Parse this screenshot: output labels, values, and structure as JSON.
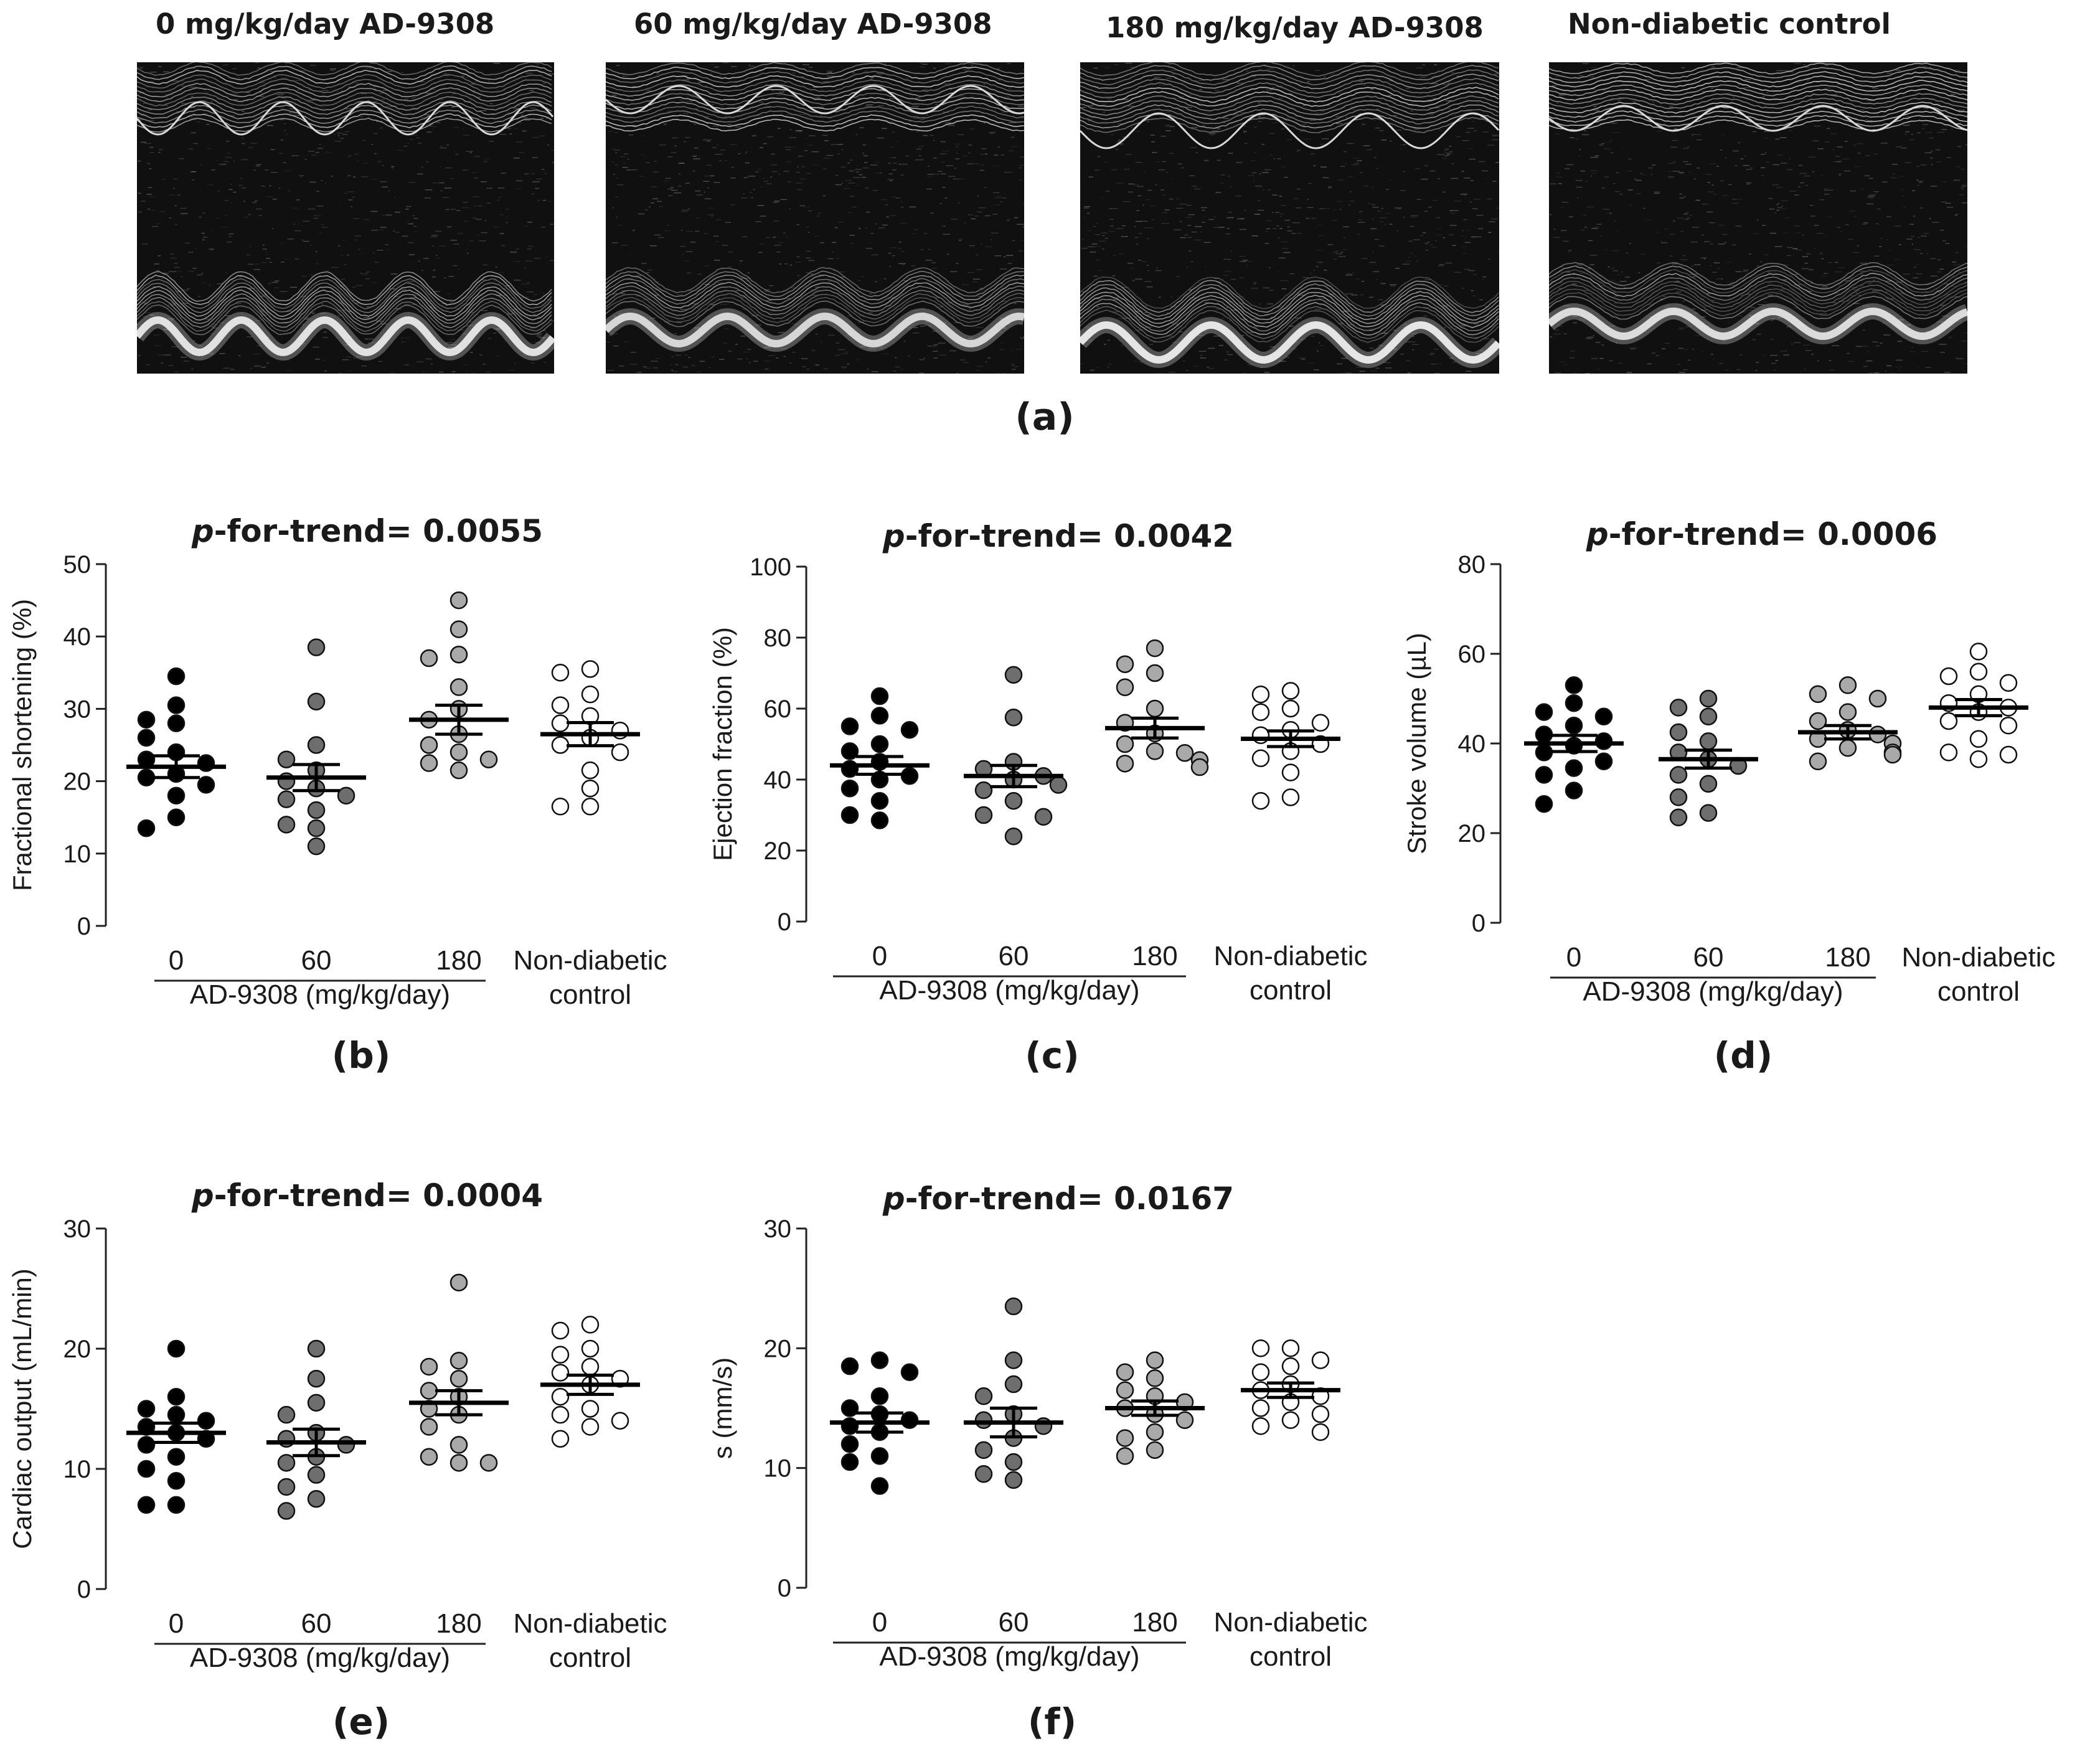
{
  "panel_a": {
    "label": "(a)",
    "images": [
      {
        "title": "0 mg/kg/day AD-9308",
        "depicts": "M-mode echocardiogram"
      },
      {
        "title": "60 mg/kg/day AD-9308",
        "depicts": "M-mode echocardiogram"
      },
      {
        "title": "180 mg/kg/day AD-9308",
        "depicts": "M-mode echocardiogram"
      },
      {
        "title": "Non-diabetic control",
        "depicts": "M-mode echocardiogram"
      }
    ]
  },
  "colors": {
    "g0": "#000000",
    "g60": "#6e6e6e",
    "g180": "#a9a9a9",
    "control": "#ffffff",
    "stroke": "#111111"
  },
  "chart_data": [
    {
      "panel": "(b)",
      "type": "scatter",
      "title_italic": "p",
      "title": "-for-trend= 0.0055",
      "ylabel": "Fractional shortening (%)",
      "ylim": [
        0,
        50
      ],
      "yticks": [
        0,
        10,
        20,
        30,
        40,
        50
      ],
      "categories": [
        "0",
        "60",
        "180",
        "Non-diabetic\ncontrol"
      ],
      "group_label": "AD-9308 (mg/kg/day)",
      "series": [
        {
          "group": "0",
          "mean": 22.0,
          "sem": 1.5,
          "values": [
            34.5,
            30.5,
            28.5,
            28.0,
            26.0,
            24.0,
            23.0,
            22.5,
            21.0,
            20.5,
            19.5,
            18.0,
            15.0,
            13.5
          ]
        },
        {
          "group": "60",
          "mean": 20.5,
          "sem": 1.8,
          "values": [
            38.5,
            31.0,
            25.0,
            23.0,
            21.5,
            20.0,
            19.0,
            18.0,
            17.5,
            16.0,
            14.0,
            13.5,
            11.0
          ]
        },
        {
          "group": "180",
          "mean": 28.5,
          "sem": 2.0,
          "values": [
            45.0,
            41.0,
            37.5,
            37.0,
            33.0,
            30.0,
            28.5,
            26.5,
            25.0,
            24.0,
            23.0,
            22.5,
            21.5
          ]
        },
        {
          "group": "Non-diabetic control",
          "mean": 26.5,
          "sem": 1.6,
          "values": [
            35.5,
            35.0,
            32.0,
            30.5,
            29.0,
            28.0,
            27.0,
            26.0,
            25.0,
            24.0,
            21.5,
            19.0,
            16.5,
            16.5
          ]
        }
      ]
    },
    {
      "panel": "(c)",
      "type": "scatter",
      "title_italic": "p",
      "title": "-for-trend= 0.0042",
      "ylabel": "Ejection fraction (%)",
      "ylim": [
        0,
        100
      ],
      "yticks": [
        0,
        20,
        40,
        60,
        80,
        100
      ],
      "categories": [
        "0",
        "60",
        "180",
        "Non-diabetic\ncontrol"
      ],
      "group_label": "AD-9308 (mg/kg/day)",
      "series": [
        {
          "group": "0",
          "mean": 44.0,
          "sem": 2.5,
          "values": [
            63.5,
            58.0,
            55.0,
            54.0,
            50.0,
            48.0,
            45.0,
            43.0,
            41.0,
            40.0,
            37.5,
            34.0,
            30.0,
            28.5
          ]
        },
        {
          "group": "60",
          "mean": 41.0,
          "sem": 3.0,
          "values": [
            69.5,
            57.5,
            45.0,
            43.0,
            41.0,
            40.0,
            38.5,
            37.0,
            34.0,
            30.0,
            29.5,
            24.0
          ]
        },
        {
          "group": "180",
          "mean": 54.5,
          "sem": 2.8,
          "values": [
            77.0,
            72.5,
            70.0,
            66.0,
            60.0,
            56.0,
            53.0,
            50.0,
            48.0,
            47.5,
            45.5,
            44.5,
            43.5
          ]
        },
        {
          "group": "Non-diabetic control",
          "mean": 51.5,
          "sem": 2.2,
          "values": [
            65.0,
            64.0,
            60.0,
            59.0,
            56.0,
            54.0,
            52.5,
            50.0,
            48.0,
            46.0,
            42.0,
            35.0,
            34.0
          ]
        }
      ]
    },
    {
      "panel": "(d)",
      "type": "scatter",
      "title_italic": "p",
      "title": "-for-trend= 0.0006",
      "ylabel": "Stroke volume (µL)",
      "ylim": [
        0,
        80
      ],
      "yticks": [
        0,
        20,
        40,
        60,
        80
      ],
      "categories": [
        "0",
        "60",
        "180",
        "Non-diabetic\ncontrol"
      ],
      "group_label": "AD-9308 (mg/kg/day)",
      "series": [
        {
          "group": "0",
          "mean": 40.0,
          "sem": 1.8,
          "values": [
            53.0,
            49.0,
            47.0,
            46.0,
            44.0,
            42.0,
            40.5,
            39.5,
            38.0,
            36.0,
            34.5,
            33.0,
            29.5,
            26.5
          ]
        },
        {
          "group": "60",
          "mean": 36.5,
          "sem": 2.0,
          "values": [
            50.0,
            48.0,
            46.0,
            42.5,
            40.5,
            38.0,
            36.5,
            35.0,
            33.0,
            31.0,
            28.0,
            24.5,
            23.5
          ]
        },
        {
          "group": "180",
          "mean": 42.5,
          "sem": 1.5,
          "values": [
            53.0,
            51.0,
            50.0,
            47.0,
            45.0,
            43.0,
            42.0,
            41.0,
            40.0,
            39.0,
            38.0,
            37.5,
            36.0
          ]
        },
        {
          "group": "Non-diabetic control",
          "mean": 48.0,
          "sem": 1.8,
          "values": [
            60.5,
            56.0,
            55.0,
            53.5,
            51.0,
            49.0,
            48.0,
            47.0,
            45.0,
            44.0,
            41.0,
            38.0,
            37.5,
            36.5
          ]
        }
      ]
    },
    {
      "panel": "(e)",
      "type": "scatter",
      "title_italic": "p",
      "title": "-for-trend= 0.0004",
      "ylabel": "Cardiac output (mL/min)",
      "ylim": [
        0,
        30
      ],
      "yticks": [
        0,
        10,
        20,
        30
      ],
      "categories": [
        "0",
        "60",
        "180",
        "Non-diabetic\ncontrol"
      ],
      "group_label": "AD-9308 (mg/kg/day)",
      "series": [
        {
          "group": "0",
          "mean": 13.0,
          "sem": 0.8,
          "values": [
            20.0,
            16.0,
            15.0,
            14.5,
            14.0,
            13.5,
            13.0,
            12.5,
            12.0,
            11.0,
            10.0,
            9.0,
            7.0,
            7.0
          ]
        },
        {
          "group": "60",
          "mean": 12.2,
          "sem": 1.1,
          "values": [
            20.0,
            17.5,
            15.5,
            14.5,
            13.0,
            12.5,
            12.0,
            11.0,
            10.5,
            9.5,
            8.5,
            7.5,
            6.5
          ]
        },
        {
          "group": "180",
          "mean": 15.5,
          "sem": 1.0,
          "values": [
            25.5,
            19.0,
            18.5,
            17.5,
            16.5,
            16.0,
            15.0,
            14.5,
            13.5,
            12.0,
            11.0,
            10.5,
            10.5
          ]
        },
        {
          "group": "Non-diabetic control",
          "mean": 17.0,
          "sem": 0.8,
          "values": [
            22.0,
            21.5,
            20.0,
            19.5,
            18.5,
            18.0,
            17.5,
            17.0,
            16.0,
            15.0,
            14.5,
            14.0,
            13.5,
            12.5
          ]
        }
      ]
    },
    {
      "panel": "(f)",
      "type": "scatter",
      "title_italic": "p",
      "title": "-for-trend= 0.0167",
      "ylabel": "s (mm/s)",
      "ylim": [
        0,
        30
      ],
      "yticks": [
        0,
        10,
        20,
        30
      ],
      "categories": [
        "0",
        "60",
        "180",
        "Non-diabetic\ncontrol"
      ],
      "group_label": "AD-9308 (mg/kg/day)",
      "series": [
        {
          "group": "0",
          "mean": 13.8,
          "sem": 0.8,
          "values": [
            19.0,
            18.5,
            18.0,
            16.0,
            15.0,
            14.5,
            14.0,
            13.5,
            13.0,
            12.0,
            11.0,
            10.5,
            8.5
          ]
        },
        {
          "group": "60",
          "mean": 13.8,
          "sem": 1.2,
          "values": [
            23.5,
            19.0,
            17.0,
            16.0,
            14.5,
            14.0,
            13.5,
            12.5,
            11.5,
            10.5,
            9.5,
            9.0
          ]
        },
        {
          "group": "180",
          "mean": 15.0,
          "sem": 0.6,
          "values": [
            19.0,
            18.0,
            17.5,
            16.5,
            16.0,
            15.5,
            15.0,
            14.5,
            14.0,
            13.0,
            12.5,
            11.5,
            11.0
          ]
        },
        {
          "group": "Non-diabetic control",
          "mean": 16.5,
          "sem": 0.6,
          "values": [
            20.0,
            20.0,
            19.0,
            18.5,
            18.0,
            17.0,
            16.5,
            16.0,
            15.5,
            15.0,
            14.5,
            14.0,
            13.5,
            13.0
          ]
        }
      ]
    }
  ]
}
